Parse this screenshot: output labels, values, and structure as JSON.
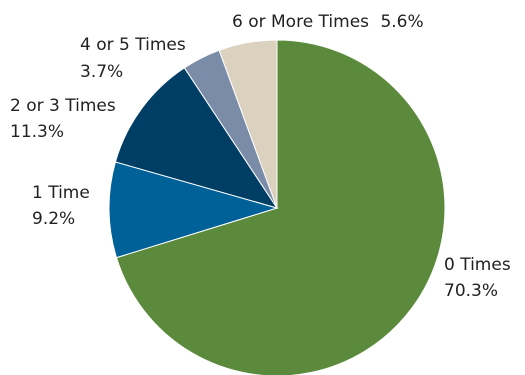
{
  "chart_data": {
    "type": "pie",
    "title": "",
    "start_angle_deg": 0,
    "direction": "clockwise",
    "slices": [
      {
        "label": "0 Times",
        "value": 70.3,
        "value_label": "70.3%",
        "color": "#5b8a3c"
      },
      {
        "label": "1 Time",
        "value": 9.2,
        "value_label": "9.2%",
        "color": "#006199"
      },
      {
        "label": "2 or 3 Times",
        "value": 11.3,
        "value_label": "11.3%",
        "color": "#003e66"
      },
      {
        "label": "4 or 5 Times",
        "value": 3.7,
        "value_label": "3.7%",
        "color": "#7a8ca7"
      },
      {
        "label": "6 or More Times",
        "value": 5.6,
        "value_label": "5.6%",
        "color": "#dbd1bf"
      }
    ]
  }
}
